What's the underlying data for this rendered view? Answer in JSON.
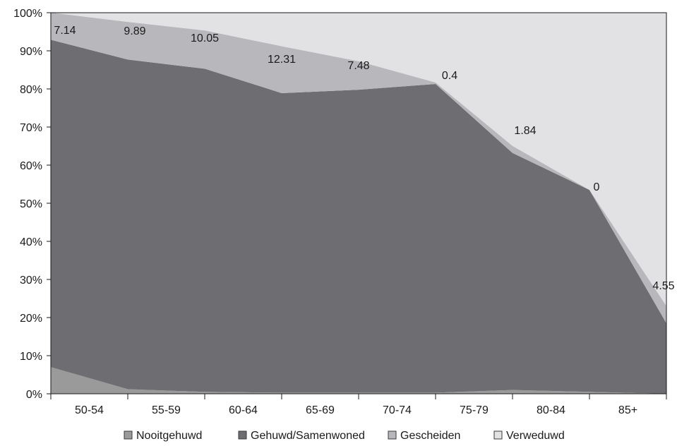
{
  "chart_data": {
    "type": "area",
    "stacked": true,
    "normalized_percent": true,
    "categories": [
      "50-54",
      "55-59",
      "60-64",
      "65-69",
      "70-74",
      "75-79",
      "80-84",
      "85+"
    ],
    "series": [
      {
        "name": "Nooitgehuwd",
        "values": [
          7.0,
          1.2,
          0.5,
          0.3,
          0.3,
          0.3,
          1.0,
          0.5
        ],
        "color": "#9a9a9a"
      },
      {
        "name": "Gehuwd/Samenwoned",
        "values": [
          85.9,
          86.5,
          84.8,
          78.6,
          79.5,
          81.0,
          62.2,
          53.0
        ],
        "color": "#6e6e72"
      },
      {
        "name": "Gescheiden",
        "values": [
          7.14,
          9.89,
          10.05,
          12.31,
          7.48,
          0.4,
          1.84,
          0.0
        ],
        "color": "#b8b8bc"
      },
      {
        "name": "Verweduwd",
        "values": [
          0.0,
          2.41,
          4.6,
          8.79,
          12.72,
          18.3,
          34.96,
          46.5
        ],
        "color": "#e2e2e4"
      }
    ],
    "x_end": {
      "category_edge": "right",
      "Nooitgehuwd": 0.0,
      "Gehuwd/Samenwoned": 18.5,
      "Gescheiden": 4.55,
      "Verweduwd": 76.95
    },
    "data_labels": [
      "7.14",
      "9.89",
      "10.05",
      "12.31",
      "7.48",
      "0.4",
      "1.84",
      "0",
      "4.55"
    ],
    "y_ticks": [
      "0%",
      "10%",
      "20%",
      "30%",
      "40%",
      "50%",
      "60%",
      "70%",
      "80%",
      "90%",
      "100%"
    ],
    "ylim": [
      0,
      100
    ],
    "legend": {
      "position": "bottom"
    },
    "grid": false
  }
}
